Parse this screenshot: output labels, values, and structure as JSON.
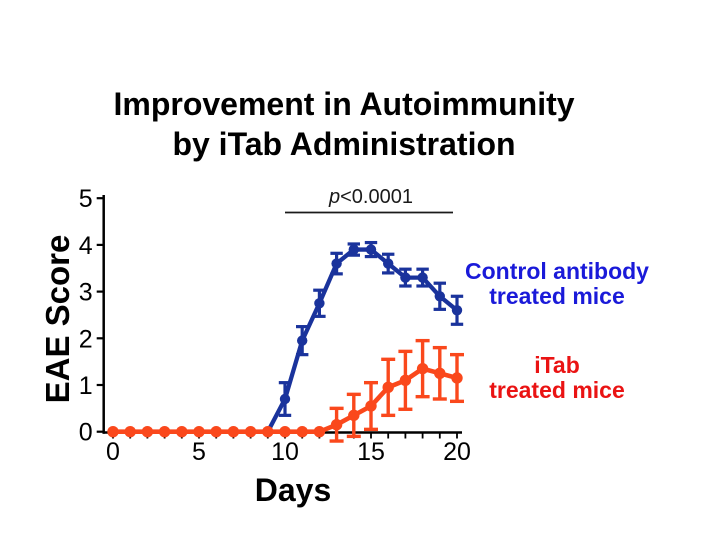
{
  "title": {
    "line1": "Improvement in Autoimmunity",
    "line2": "by iTab Administration"
  },
  "axes": {
    "x_label": "Days",
    "y_label": "EAE Score"
  },
  "significance": {
    "p_symbol": "p",
    "value": "<0.0001",
    "from_day": 10,
    "to_day": 20
  },
  "legend": {
    "control": {
      "line1": "Control antibody",
      "line2": "treated mice",
      "color": "#1a1ad9"
    },
    "itab": {
      "line1": "iTab",
      "line2": "treated mice",
      "color": "#ea1313"
    }
  },
  "chart_data": {
    "type": "line",
    "title": "Improvement in Autoimmunity by iTab Administration",
    "xlabel": "Days",
    "ylabel": "EAE Score",
    "xlim": [
      0,
      20
    ],
    "ylim": [
      0,
      5
    ],
    "x_ticks": [
      0,
      5,
      10,
      15,
      20
    ],
    "minor_x_tick_every_day": 1,
    "y_ticks": [
      0,
      1,
      2,
      3,
      4,
      5
    ],
    "grid": false,
    "legend_position": "right",
    "annotation": {
      "text": "p<0.0001",
      "span_days": [
        10,
        20
      ]
    },
    "series": [
      {
        "name": "Control antibody treated mice",
        "color": "#1a339c",
        "x": [
          9,
          10,
          11,
          12,
          13,
          14,
          15,
          16,
          17,
          18,
          19,
          20
        ],
        "y": [
          0,
          0.7,
          1.95,
          2.75,
          3.6,
          3.9,
          3.9,
          3.6,
          3.3,
          3.3,
          2.9,
          2.6
        ],
        "err": [
          0,
          0.35,
          0.3,
          0.28,
          0.22,
          0.12,
          0.15,
          0.2,
          0.18,
          0.18,
          0.28,
          0.3
        ]
      },
      {
        "name": "iTab treated mice",
        "color": "#fa481c",
        "x": [
          0,
          1,
          2,
          3,
          4,
          5,
          6,
          7,
          8,
          9,
          10,
          11,
          12,
          13,
          14,
          15,
          16,
          17,
          18,
          19,
          20
        ],
        "y": [
          0,
          0,
          0,
          0,
          0,
          0,
          0,
          0,
          0,
          0,
          0,
          0,
          0,
          0.15,
          0.35,
          0.55,
          0.95,
          1.1,
          1.35,
          1.25,
          1.15
        ],
        "err": [
          0,
          0,
          0,
          0,
          0,
          0,
          0,
          0,
          0,
          0,
          0,
          0,
          0,
          0.35,
          0.45,
          0.5,
          0.6,
          0.62,
          0.6,
          0.55,
          0.5
        ]
      }
    ]
  }
}
